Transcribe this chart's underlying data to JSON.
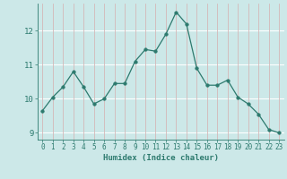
{
  "x": [
    0,
    1,
    2,
    3,
    4,
    5,
    6,
    7,
    8,
    9,
    10,
    11,
    12,
    13,
    14,
    15,
    16,
    17,
    18,
    19,
    20,
    21,
    22,
    23
  ],
  "y": [
    9.65,
    10.05,
    10.35,
    10.8,
    10.35,
    9.85,
    10.0,
    10.45,
    10.45,
    11.1,
    11.45,
    11.4,
    11.9,
    12.55,
    12.2,
    10.9,
    10.4,
    10.4,
    10.55,
    10.05,
    9.85,
    9.55,
    9.1,
    9.0
  ],
  "xlabel": "Humidex (Indice chaleur)",
  "ylim": [
    8.8,
    12.8
  ],
  "xlim": [
    -0.5,
    23.5
  ],
  "yticks": [
    9,
    10,
    11,
    12
  ],
  "xticks": [
    0,
    1,
    2,
    3,
    4,
    5,
    6,
    7,
    8,
    9,
    10,
    11,
    12,
    13,
    14,
    15,
    16,
    17,
    18,
    19,
    20,
    21,
    22,
    23
  ],
  "line_color": "#2d7a6e",
  "marker_size": 2.5,
  "bg_color": "#cce8e8",
  "hgrid_color": "#ffffff",
  "vgrid_color": "#d4b8b8",
  "tick_color": "#2d7a6e",
  "xlabel_color": "#2d7a6e",
  "xlabel_fontsize": 6.5,
  "tick_fontsize": 5.5,
  "ytick_fontsize": 6.5
}
